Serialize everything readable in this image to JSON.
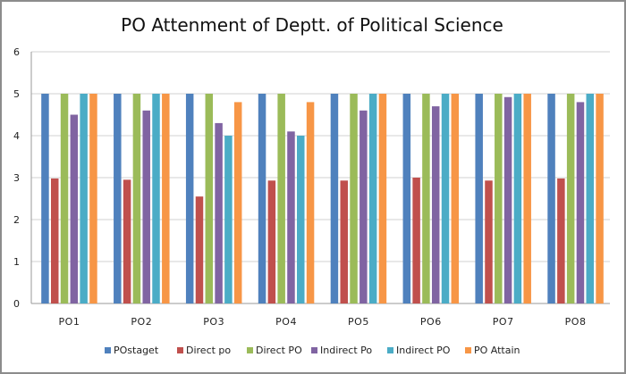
{
  "chart_data": {
    "type": "bar",
    "title": "PO Attenment of Deptt. of Political Science",
    "xlabel": "",
    "ylabel": "",
    "ylim": [
      0,
      6
    ],
    "yticks": [
      0,
      1,
      2,
      3,
      4,
      5,
      6
    ],
    "grid": true,
    "legend_position": "bottom",
    "categories": [
      "PO1",
      "PO2",
      "PO3",
      "PO4",
      "PO5",
      "PO6",
      "PO7",
      "PO8"
    ],
    "series": [
      {
        "name": "POstaget",
        "color": "#4F81BD",
        "values": [
          5,
          5,
          5,
          5,
          5,
          5,
          5,
          5
        ]
      },
      {
        "name": "Direct po",
        "color": "#C0504D",
        "values": [
          2.98,
          2.95,
          2.55,
          2.93,
          2.93,
          3.0,
          2.93,
          2.98
        ]
      },
      {
        "name": "Direct PO",
        "color": "#9BBB59",
        "values": [
          5,
          5,
          5,
          5,
          5,
          5,
          5,
          5
        ]
      },
      {
        "name": "Indirect Po",
        "color": "#8064A2",
        "values": [
          4.5,
          4.6,
          4.3,
          4.1,
          4.6,
          4.7,
          4.92,
          4.8
        ]
      },
      {
        "name": "Indirect PO",
        "color": "#4BACC6",
        "values": [
          5,
          5,
          4.0,
          4.0,
          5,
          5,
          5,
          5
        ]
      },
      {
        "name": "PO Attain",
        "color": "#F79646",
        "values": [
          5,
          5,
          4.8,
          4.8,
          5,
          5,
          5,
          5
        ]
      }
    ]
  }
}
